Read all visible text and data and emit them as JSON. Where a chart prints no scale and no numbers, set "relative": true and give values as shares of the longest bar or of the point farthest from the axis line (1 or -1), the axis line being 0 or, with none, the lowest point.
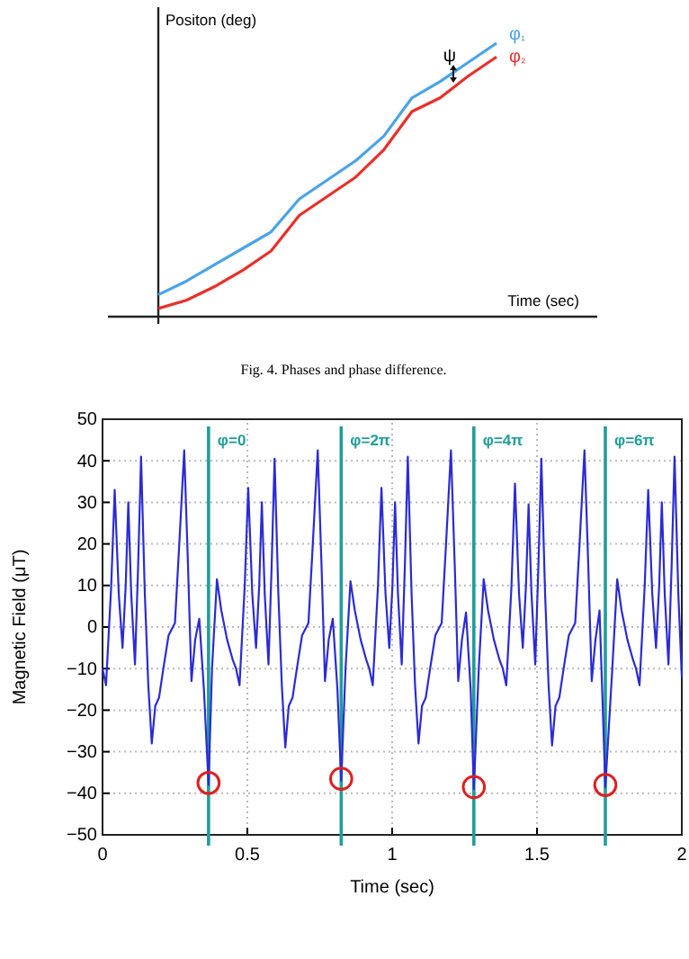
{
  "chart_data": [
    {
      "type": "line",
      "relative": true,
      "xlabel": "Time (sec)",
      "ylabel": "Positon (deg)",
      "categories": [
        null,
        null,
        null,
        null,
        null,
        null,
        null,
        null,
        null,
        null,
        null,
        null,
        null
      ],
      "series": [
        {
          "name": "φ₁",
          "color": "#4aa3e8",
          "values": [
            0.08,
            0.13,
            0.19,
            0.25,
            0.31,
            0.43,
            0.5,
            0.57,
            0.66,
            0.8,
            0.86,
            0.93,
            1
          ]
        },
        {
          "name": "φ₂",
          "color": "#e8302a",
          "values": [
            0.03,
            0.06,
            0.11,
            0.17,
            0.24,
            0.37,
            0.44,
            0.51,
            0.61,
            0.75,
            0.8,
            0.88,
            0.95
          ]
        }
      ],
      "annotations": [
        "ψ",
        "Fig. 4. Phases and phase difference."
      ]
    },
    {
      "type": "line",
      "xlabel": "Time (sec)",
      "ylabel": "Magnetic Field (μT)",
      "xlim": [
        0,
        2
      ],
      "xticks": [
        0,
        0.5,
        1,
        1.5,
        2
      ],
      "ylim": [
        -50,
        50
      ],
      "yticks": [
        -50,
        -40,
        -30,
        -20,
        -10,
        0,
        10,
        20,
        30,
        40,
        50
      ],
      "grid": true,
      "series": [
        {
          "color": "#2b2bd6",
          "x": [
            0.0,
            0.012,
            0.03,
            0.042,
            0.056,
            0.069,
            0.08,
            0.089,
            0.099,
            0.112,
            0.123,
            0.133,
            0.146,
            0.158,
            0.17,
            0.182,
            0.195,
            0.21,
            0.228,
            0.25,
            0.265,
            0.282,
            0.295,
            0.307,
            0.32,
            0.334,
            0.35,
            0.366,
            0.378,
            0.395,
            0.41,
            0.43,
            0.45,
            0.461,
            0.473,
            0.491,
            0.503,
            0.517,
            0.53,
            0.541,
            0.55,
            0.56,
            0.573,
            0.584,
            0.594,
            0.607,
            0.619,
            0.631,
            0.643,
            0.656,
            0.671,
            0.689,
            0.711,
            0.726,
            0.743,
            0.756,
            0.768,
            0.781,
            0.795,
            0.811,
            0.824,
            0.839,
            0.856,
            0.871,
            0.891,
            0.911,
            0.921,
            0.933,
            0.951,
            0.963,
            0.977,
            0.99,
            1.001,
            1.01,
            1.02,
            1.033,
            1.044,
            1.054,
            1.067,
            1.079,
            1.091,
            1.103,
            1.116,
            1.131,
            1.149,
            1.171,
            1.186,
            1.203,
            1.216,
            1.228,
            1.241,
            1.255,
            1.271,
            1.282,
            1.299,
            1.316,
            1.331,
            1.351,
            1.371,
            1.382,
            1.394,
            1.412,
            1.424,
            1.438,
            1.451,
            1.462,
            1.471,
            1.481,
            1.494,
            1.505,
            1.515,
            1.528,
            1.54,
            1.552,
            1.564,
            1.577,
            1.592,
            1.61,
            1.632,
            1.647,
            1.664,
            1.677,
            1.689,
            1.702,
            1.716,
            1.725,
            1.736,
            1.76,
            1.777,
            1.792,
            1.812,
            1.832,
            1.842,
            1.854,
            1.872,
            1.884,
            1.898,
            1.911,
            1.922,
            1.931,
            1.941,
            1.954,
            1.965,
            1.975,
            1.988,
            2.0
          ],
          "values": [
            -10,
            -14,
            10,
            33,
            8,
            -5,
            10,
            30,
            8,
            -9,
            15,
            41,
            8,
            -14,
            -28,
            -19,
            -17,
            -10,
            -2,
            1,
            20,
            42.5,
            15,
            -13,
            -3,
            2,
            -15,
            -38,
            -10,
            11.5,
            4,
            -3,
            -8,
            -10,
            -14,
            10,
            33.5,
            8,
            -5,
            10,
            30,
            8,
            -9,
            15,
            40.5,
            8,
            -14,
            -29,
            -19,
            -17,
            -10,
            -2,
            1,
            20,
            42.5,
            15,
            -13,
            -3,
            2,
            -15,
            -37,
            -10,
            11,
            4,
            -3,
            -8,
            -10,
            -14,
            10,
            33.5,
            8,
            -5,
            10,
            30,
            8,
            -9,
            15,
            41,
            8,
            -14,
            -28,
            -19,
            -17,
            -10,
            -2,
            1,
            20,
            42.5,
            15,
            -13,
            -3,
            3.5,
            -15,
            -39,
            -10,
            11.5,
            4,
            -3,
            -8,
            -10,
            -14,
            10,
            34.5,
            8,
            -5,
            10,
            29.5,
            8,
            -9,
            15,
            40.5,
            8,
            -14,
            -28.5,
            -19,
            -17,
            -10,
            -2,
            1,
            20,
            42.5,
            15,
            -13,
            -3,
            4,
            -15,
            -38.5,
            -10,
            11.5,
            4,
            -3,
            -8,
            -10,
            -14,
            10,
            33,
            8,
            -5,
            10,
            30,
            8,
            -9,
            15,
            41,
            8,
            -12
          ]
        },
        {
          "type": "scatter",
          "marker": "circle",
          "color": "#e02020",
          "x": [
            0.366,
            0.824,
            1.282,
            1.736
          ],
          "values": [
            -37.5,
            -36.5,
            -38.5,
            -38
          ]
        }
      ],
      "ref_lines": [
        {
          "axis": "x",
          "value": 0.366,
          "color": "#1f9e9a"
        },
        {
          "axis": "x",
          "value": 0.824,
          "color": "#1f9e9a"
        },
        {
          "axis": "x",
          "value": 1.282,
          "color": "#1f9e9a"
        },
        {
          "axis": "x",
          "value": 1.736,
          "color": "#1f9e9a"
        }
      ],
      "annotations": [
        {
          "text": "φ=0",
          "x": 0.366,
          "y": 45
        },
        {
          "text": "φ=2π",
          "x": 0.824,
          "y": 45
        },
        {
          "text": "φ=4π",
          "x": 1.282,
          "y": 45
        },
        {
          "text": "φ=6π",
          "x": 1.736,
          "y": 45
        }
      ]
    }
  ]
}
